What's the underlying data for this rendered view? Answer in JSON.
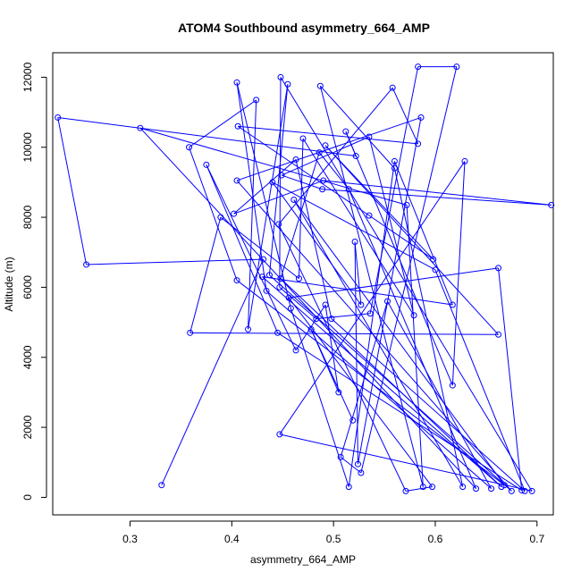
{
  "chart_data": {
    "type": "line",
    "title": "ATOM4 Southbound asymmetry_664_AMP",
    "xlabel": "asymmetry_664_AMP",
    "ylabel": "Altitude (m)",
    "xlim": [
      0.224,
      0.716
    ],
    "ylim": [
      -500,
      12700
    ],
    "x_ticks": [
      0.3,
      0.4,
      0.5,
      0.6,
      0.7
    ],
    "y_ticks": [
      0,
      2000,
      4000,
      6000,
      8000,
      10000,
      12000
    ],
    "x_tick_labels": [
      "0.3",
      "0.4",
      "0.5",
      "0.6",
      "0.7"
    ],
    "y_tick_labels": [
      "0",
      "2000",
      "4000",
      "6000",
      "8000",
      "10000",
      "12000"
    ],
    "markers": "open-circle",
    "series": [
      {
        "color": "#0000ff",
        "points": [
          [
            0.331,
            350
          ],
          [
            0.431,
            6800
          ],
          [
            0.257,
            6650
          ],
          [
            0.229,
            10850
          ],
          [
            0.522,
            9750
          ],
          [
            0.512,
            10450
          ],
          [
            0.617,
            3200
          ],
          [
            0.629,
            9600
          ],
          [
            0.447,
            1800
          ],
          [
            0.695,
            180
          ],
          [
            0.448,
            12000
          ],
          [
            0.447,
            6000
          ],
          [
            0.483,
            5100
          ],
          [
            0.536,
            5250
          ],
          [
            0.583,
            12300
          ],
          [
            0.621,
            12300
          ],
          [
            0.527,
            700
          ],
          [
            0.507,
            1150
          ],
          [
            0.553,
            5600
          ],
          [
            0.655,
            250
          ],
          [
            0.434,
            5900
          ],
          [
            0.405,
            11850
          ],
          [
            0.458,
            5400
          ],
          [
            0.515,
            300
          ],
          [
            0.56,
            9600
          ],
          [
            0.617,
            5500
          ],
          [
            0.43,
            6300
          ],
          [
            0.665,
            300
          ],
          [
            0.448,
            6250
          ],
          [
            0.486,
            9850
          ],
          [
            0.515,
            8800
          ],
          [
            0.64,
            250
          ],
          [
            0.31,
            10550
          ],
          [
            0.572,
            8350
          ],
          [
            0.588,
            300
          ],
          [
            0.487,
            11750
          ],
          [
            0.56,
            9400
          ],
          [
            0.627,
            300
          ],
          [
            0.461,
            8500
          ],
          [
            0.668,
            350
          ],
          [
            0.405,
            6200
          ],
          [
            0.358,
            10000
          ],
          [
            0.424,
            11350
          ],
          [
            0.416,
            4800
          ],
          [
            0.455,
            11800
          ],
          [
            0.437,
            6350
          ],
          [
            0.675,
            180
          ],
          [
            0.405,
            9050
          ],
          [
            0.586,
            10850
          ],
          [
            0.524,
            950
          ],
          [
            0.521,
            7300
          ],
          [
            0.527,
            5500
          ],
          [
            0.44,
            9000
          ],
          [
            0.6,
            6500
          ],
          [
            0.688,
            180
          ],
          [
            0.498,
            5100
          ],
          [
            0.463,
            9650
          ],
          [
            0.402,
            8100
          ],
          [
            0.49,
            9050
          ],
          [
            0.714,
            8350
          ],
          [
            0.489,
            8800
          ],
          [
            0.449,
            9200
          ],
          [
            0.535,
            10300
          ],
          [
            0.579,
            5200
          ],
          [
            0.47,
            10250
          ],
          [
            0.466,
            6250
          ],
          [
            0.389,
            8000
          ],
          [
            0.359,
            4700
          ],
          [
            0.662,
            4650
          ],
          [
            0.492,
            10050
          ],
          [
            0.598,
            6800
          ],
          [
            0.535,
            8050
          ],
          [
            0.406,
            10600
          ],
          [
            0.583,
            10100
          ],
          [
            0.558,
            11700
          ],
          [
            0.446,
            7800
          ],
          [
            0.571,
            180
          ],
          [
            0.597,
            300
          ],
          [
            0.456,
            5700
          ],
          [
            0.662,
            6550
          ],
          [
            0.685,
            200
          ],
          [
            0.445,
            4700
          ],
          [
            0.375,
            9500
          ],
          [
            0.463,
            4200
          ],
          [
            0.492,
            5500
          ],
          [
            0.505,
            3000
          ],
          [
            0.478,
            4800
          ],
          [
            0.519,
            2200
          ]
        ]
      }
    ]
  }
}
